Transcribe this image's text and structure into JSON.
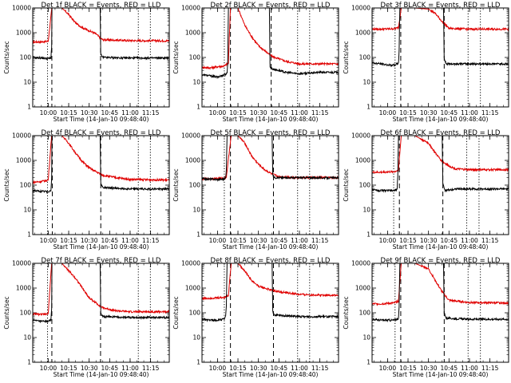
{
  "chart_data": {
    "type": "line",
    "layout": "3x3 grid",
    "y_scale": "log",
    "ylim": [
      1,
      10000
    ],
    "ytick_labels": [
      "1",
      "10",
      "100",
      "1000",
      "10000"
    ],
    "ylabel": "Counts/sec",
    "xlabel": "Start Time (14-Jan-10 09:48:40)",
    "xlim": [
      "09:48:40",
      "11:28:40"
    ],
    "xtick_labels": [
      "10:00",
      "10:15",
      "10:30",
      "10:45",
      "11:00",
      "11:15"
    ],
    "line_colors": {
      "events": "#000000",
      "lld": "#e00000"
    },
    "panels": [
      {
        "title": "Det 1f BLACK = Events, RED = LLD",
        "vlines": [
          {
            "t": "09:59:30",
            "style": "dotted"
          },
          {
            "t": "10:02:40",
            "style": "dashed"
          },
          {
            "t": "10:38:20",
            "style": "dashed"
          },
          {
            "t": "11:06:00",
            "style": "dotted"
          },
          {
            "t": "11:14:50",
            "style": "dotted"
          }
        ],
        "events": {
          "t": [
            "09:48:40",
            "09:55:00",
            "10:00:00",
            "10:02:00",
            "10:02:30",
            "10:02:45",
            "10:05:00",
            "10:10:00",
            "10:20:00",
            "10:30:00",
            "10:38:00",
            "10:38:30",
            "10:40:00",
            "11:00:00",
            "11:28:40"
          ],
          "y": [
            100,
            95,
            90,
            95,
            280,
            10000,
            10000,
            10000,
            10000,
            10000,
            10000,
            130,
            100,
            95,
            95
          ]
        },
        "lld": {
          "t": [
            "09:48:40",
            "09:55:00",
            "10:00:00",
            "10:02:40",
            "10:05:00",
            "10:10:00",
            "10:15:00",
            "10:20:00",
            "10:25:00",
            "10:30:00",
            "10:35:00",
            "10:38:00",
            "10:40:00",
            "11:00:00",
            "11:28:40"
          ],
          "y": [
            420,
            430,
            450,
            10000,
            10000,
            10000,
            5500,
            2500,
            1600,
            1200,
            900,
            620,
            520,
            480,
            470
          ]
        }
      },
      {
        "title": "Det 2f BLACK = Events, RED = LLD",
        "vlines": [
          {
            "t": "10:05:00",
            "style": "dotted"
          },
          {
            "t": "10:09:30",
            "style": "dashed"
          },
          {
            "t": "10:39:20",
            "style": "dashed"
          },
          {
            "t": "10:58:40",
            "style": "dotted"
          },
          {
            "t": "11:07:30",
            "style": "dotted"
          }
        ],
        "events": {
          "t": [
            "09:48:40",
            "09:55:00",
            "10:00:00",
            "10:05:00",
            "10:07:00",
            "10:07:30",
            "10:08:00",
            "10:20:00",
            "10:38:00",
            "10:38:30",
            "10:40:00",
            "10:50:00",
            "11:00:00",
            "11:15:00",
            "11:28:40"
          ],
          "y": [
            20,
            18,
            16,
            20,
            22,
            60,
            10000,
            10000,
            10000,
            40,
            35,
            25,
            22,
            25,
            25
          ]
        },
        "lld": {
          "t": [
            "09:48:40",
            "09:55:00",
            "10:00:00",
            "10:05:00",
            "10:08:00",
            "10:09:30",
            "10:15:00",
            "10:20:00",
            "10:25:00",
            "10:30:00",
            "10:35:00",
            "10:40:00",
            "10:50:00",
            "11:00:00",
            "11:28:40"
          ],
          "y": [
            40,
            38,
            42,
            45,
            60,
            10000,
            10000,
            2000,
            700,
            300,
            180,
            110,
            70,
            55,
            55
          ]
        }
      },
      {
        "title": "Det 3f BLACK = Events, RED = LLD",
        "vlines": [
          {
            "t": "10:05:30",
            "style": "dotted"
          },
          {
            "t": "10:09:40",
            "style": "dashed"
          },
          {
            "t": "10:41:30",
            "style": "dashed"
          },
          {
            "t": "10:59:00",
            "style": "dotted"
          },
          {
            "t": "11:08:00",
            "style": "dotted"
          }
        ],
        "events": {
          "t": [
            "09:48:40",
            "09:55:00",
            "10:00:00",
            "10:05:00",
            "10:08:00",
            "10:08:30",
            "10:09:00",
            "10:20:00",
            "10:41:00",
            "10:41:30",
            "10:43:00",
            "11:00:00",
            "11:28:40"
          ],
          "y": [
            60,
            55,
            50,
            48,
            60,
            200,
            10000,
            10000,
            10000,
            90,
            55,
            55,
            55
          ]
        },
        "lld": {
          "t": [
            "09:48:40",
            "09:55:00",
            "10:00:00",
            "10:05:00",
            "10:08:00",
            "10:10:00",
            "10:20:00",
            "10:30:00",
            "10:35:00",
            "10:40:00",
            "10:45:00",
            "11:00:00",
            "11:28:40"
          ],
          "y": [
            1400,
            1400,
            1420,
            1450,
            1600,
            10000,
            10000,
            9000,
            6000,
            2800,
            1500,
            1400,
            1400
          ]
        }
      },
      {
        "title": "Det 4f BLACK = Events, RED = LLD",
        "vlines": [
          {
            "t": "09:59:30",
            "style": "dotted"
          },
          {
            "t": "10:03:00",
            "style": "dashed"
          },
          {
            "t": "10:38:30",
            "style": "dashed"
          },
          {
            "t": "11:06:00",
            "style": "dotted"
          },
          {
            "t": "11:14:50",
            "style": "dotted"
          }
        ],
        "events": {
          "t": [
            "09:48:40",
            "09:55:00",
            "10:00:00",
            "10:02:00",
            "10:02:30",
            "10:02:45",
            "10:05:00",
            "10:20:00",
            "10:38:00",
            "10:38:30",
            "10:40:00",
            "11:00:00",
            "11:28:40"
          ],
          "y": [
            60,
            55,
            55,
            60,
            200,
            10000,
            10000,
            10000,
            10000,
            120,
            80,
            70,
            70
          ]
        },
        "lld": {
          "t": [
            "09:48:40",
            "09:55:00",
            "10:00:00",
            "10:02:30",
            "10:05:00",
            "10:10:00",
            "10:15:00",
            "10:20:00",
            "10:25:00",
            "10:30:00",
            "10:35:00",
            "10:40:00",
            "10:50:00",
            "11:00:00",
            "11:28:40"
          ],
          "y": [
            130,
            140,
            160,
            10000,
            10000,
            10000,
            5000,
            2000,
            900,
            500,
            350,
            250,
            200,
            170,
            160
          ]
        }
      },
      {
        "title": "Det 5f BLACK = Events, RED = LLD",
        "vlines": [
          {
            "t": "10:05:00",
            "style": "dotted"
          },
          {
            "t": "10:09:30",
            "style": "dashed"
          },
          {
            "t": "10:41:00",
            "style": "dashed"
          },
          {
            "t": "10:58:40",
            "style": "dotted"
          },
          {
            "t": "11:07:30",
            "style": "dotted"
          }
        ],
        "events": {
          "t": [
            "09:48:40",
            "09:55:00",
            "10:00:00",
            "10:05:00",
            "10:06:00",
            "10:06:30",
            "10:07:00",
            "10:20:00",
            "10:40:00",
            "10:40:30",
            "10:42:00",
            "11:00:00",
            "11:28:40"
          ],
          "y": [
            180,
            175,
            170,
            175,
            200,
            400,
            10000,
            10000,
            10000,
            260,
            200,
            200,
            195
          ]
        },
        "lld": {
          "t": [
            "09:48:40",
            "09:55:00",
            "10:00:00",
            "10:05:00",
            "10:06:30",
            "10:10:00",
            "10:15:00",
            "10:20:00",
            "10:25:00",
            "10:30:00",
            "10:35:00",
            "10:40:00",
            "10:45:00",
            "11:00:00",
            "11:28:40"
          ],
          "y": [
            175,
            180,
            185,
            190,
            210,
            10000,
            10000,
            5000,
            1500,
            700,
            400,
            280,
            220,
            200,
            200
          ]
        }
      },
      {
        "title": "Det 6f BLACK = Events, RED = LLD",
        "vlines": [
          {
            "t": "10:04:30",
            "style": "dotted"
          },
          {
            "t": "10:08:40",
            "style": "dashed"
          },
          {
            "t": "10:40:30",
            "style": "dashed"
          },
          {
            "t": "10:58:00",
            "style": "dotted"
          },
          {
            "t": "11:07:00",
            "style": "dotted"
          }
        ],
        "events": {
          "t": [
            "09:48:40",
            "09:55:00",
            "10:00:00",
            "10:05:00",
            "10:07:00",
            "10:07:30",
            "10:08:00",
            "10:20:00",
            "10:40:00",
            "10:40:30",
            "10:42:00",
            "10:50:00",
            "11:00:00",
            "11:28:40"
          ],
          "y": [
            65,
            60,
            60,
            60,
            70,
            250,
            10000,
            10000,
            10000,
            120,
            60,
            70,
            70,
            70
          ]
        },
        "lld": {
          "t": [
            "09:48:40",
            "09:55:00",
            "10:00:00",
            "10:05:00",
            "10:08:00",
            "10:10:00",
            "10:20:00",
            "10:30:00",
            "10:35:00",
            "10:40:00",
            "10:45:00",
            "10:50:00",
            "11:00:00",
            "11:28:40"
          ],
          "y": [
            330,
            330,
            340,
            350,
            400,
            10000,
            10000,
            5000,
            2000,
            900,
            600,
            450,
            420,
            420
          ]
        }
      },
      {
        "title": "Det 7f BLACK = Events, RED = LLD",
        "vlines": [
          {
            "t": "09:59:30",
            "style": "dotted"
          },
          {
            "t": "10:02:40",
            "style": "dashed"
          },
          {
            "t": "10:38:20",
            "style": "dashed"
          },
          {
            "t": "11:06:00",
            "style": "dotted"
          },
          {
            "t": "11:14:50",
            "style": "dotted"
          }
        ],
        "events": {
          "t": [
            "09:48:40",
            "09:55:00",
            "10:00:00",
            "10:02:00",
            "10:02:30",
            "10:02:45",
            "10:05:00",
            "10:20:00",
            "10:38:00",
            "10:38:30",
            "10:40:00",
            "11:00:00",
            "11:28:40"
          ],
          "y": [
            50,
            45,
            45,
            50,
            150,
            10000,
            10000,
            10000,
            10000,
            100,
            70,
            65,
            65
          ]
        },
        "lld": {
          "t": [
            "09:48:40",
            "09:55:00",
            "10:00:00",
            "10:02:30",
            "10:05:00",
            "10:10:00",
            "10:15:00",
            "10:20:00",
            "10:25:00",
            "10:30:00",
            "10:35:00",
            "10:40:00",
            "10:50:00",
            "11:00:00",
            "11:28:40"
          ],
          "y": [
            90,
            85,
            90,
            10000,
            10000,
            10000,
            5000,
            2500,
            1000,
            400,
            250,
            160,
            120,
            110,
            110
          ]
        }
      },
      {
        "title": "Det 8f BLACK = Events, RED = LLD",
        "vlines": [
          {
            "t": "10:05:00",
            "style": "dotted"
          },
          {
            "t": "10:09:30",
            "style": "dashed"
          },
          {
            "t": "10:41:00",
            "style": "dashed"
          },
          {
            "t": "10:58:40",
            "style": "dotted"
          },
          {
            "t": "11:07:30",
            "style": "dotted"
          }
        ],
        "events": {
          "t": [
            "09:48:40",
            "09:55:00",
            "10:00:00",
            "10:05:00",
            "10:06:00",
            "10:06:30",
            "10:07:00",
            "10:20:00",
            "10:40:00",
            "10:40:30",
            "10:42:00",
            "10:50:00",
            "11:00:00",
            "11:28:40"
          ],
          "y": [
            55,
            50,
            50,
            55,
            70,
            200,
            10000,
            10000,
            10000,
            110,
            80,
            75,
            70,
            70
          ]
        },
        "lld": {
          "t": [
            "09:48:40",
            "09:55:00",
            "10:00:00",
            "10:05:00",
            "10:08:00",
            "10:10:00",
            "10:15:00",
            "10:20:00",
            "10:25:00",
            "10:30:00",
            "10:40:00",
            "10:50:00",
            "11:00:00",
            "11:28:40"
          ],
          "y": [
            380,
            390,
            400,
            420,
            500,
            10000,
            10000,
            5000,
            2000,
            1200,
            800,
            650,
            550,
            500
          ]
        }
      },
      {
        "title": "Det 9f BLACK = Events, RED = LLD",
        "vlines": [
          {
            "t": "10:05:30",
            "style": "dotted"
          },
          {
            "t": "10:09:40",
            "style": "dashed"
          },
          {
            "t": "10:41:30",
            "style": "dashed"
          },
          {
            "t": "10:59:00",
            "style": "dotted"
          },
          {
            "t": "11:08:00",
            "style": "dotted"
          }
        ],
        "events": {
          "t": [
            "09:48:40",
            "09:55:00",
            "10:00:00",
            "10:05:00",
            "10:08:00",
            "10:08:30",
            "10:09:00",
            "10:20:00",
            "10:41:00",
            "10:41:30",
            "10:43:00",
            "11:00:00",
            "11:28:40"
          ],
          "y": [
            55,
            50,
            50,
            50,
            60,
            180,
            10000,
            10000,
            10000,
            100,
            60,
            55,
            55
          ]
        },
        "lld": {
          "t": [
            "09:48:40",
            "09:55:00",
            "10:00:00",
            "10:05:00",
            "10:08:00",
            "10:10:00",
            "10:20:00",
            "10:30:00",
            "10:35:00",
            "10:40:00",
            "10:45:00",
            "11:00:00",
            "11:28:40"
          ],
          "y": [
            230,
            230,
            240,
            250,
            300,
            10000,
            10000,
            6000,
            2000,
            700,
            320,
            260,
            250
          ]
        }
      }
    ]
  }
}
